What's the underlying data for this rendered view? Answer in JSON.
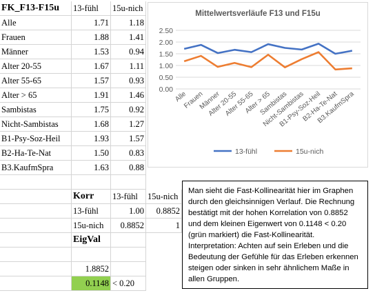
{
  "table1": {
    "header": [
      "FK_F13-F15u",
      "13-fühl",
      "15u-nich"
    ],
    "rows": [
      [
        "Alle",
        "1.71",
        "1.18"
      ],
      [
        "Frauen",
        "1.88",
        "1.41"
      ],
      [
        "Männer",
        "1.53",
        "0.94"
      ],
      [
        "Alter 20-55",
        "1.67",
        "1.11"
      ],
      [
        "Alter 55-65",
        "1.57",
        "0.93"
      ],
      [
        "Alter > 65",
        "1.91",
        "1.46"
      ],
      [
        "Sambistas",
        "1.75",
        "0.92"
      ],
      [
        "Nicht-Sambistas",
        "1.68",
        "1.27"
      ],
      [
        "B1-Psy-Soz-Heil",
        "1.93",
        "1.57"
      ],
      [
        "B2-Ha-Te-Nat",
        "1.50",
        "0.83"
      ],
      [
        "B3.KaufmSpra",
        "1.63",
        "0.88"
      ]
    ]
  },
  "korr": {
    "title": "Korr",
    "col1": "13-fühl",
    "col2": "15u-nich",
    "row1": [
      "13-fühl",
      "1.00",
      "0.8852"
    ],
    "row2": [
      "15u-nich",
      "0.8852",
      "1"
    ]
  },
  "eig": {
    "title": "EigVal",
    "v1": "1.8852",
    "v2": "0.1148",
    "cond": "< 0.20"
  },
  "note": "Man sieht die Fast-Kollinearität hier im Graphen durch den gleichsinnigen Verlauf. Die Rechnung bestätigt mit der hohen Korrelation von 0.8852 und dem kleinen Eigenwert von 0.1148 < 0.20 (grün markiert) die Fast-Kollinearität. Interpretation: Achten auf sein Erleben und die Bedeutung der Gefühle für das Erleben erkennen steigen oder sinken in sehr ähnlichem Maße in allen Gruppen.",
  "chart_data": {
    "type": "line",
    "title": "Mittelwertsverläufe F13 und F15u",
    "categories": [
      "Alle",
      "Frauen",
      "Männer",
      "Alter 20-55",
      "Alter 55-65",
      "Alter > 65",
      "Sambistas",
      "Nicht-Sambistas",
      "B1-Psy-Soz-Heil",
      "B2-Ha-Te-Nat",
      "B3.KaufmSpra"
    ],
    "series": [
      {
        "name": "13-fühl",
        "color": "#4472c4",
        "values": [
          1.71,
          1.88,
          1.53,
          1.67,
          1.57,
          1.91,
          1.75,
          1.68,
          1.93,
          1.5,
          1.63
        ]
      },
      {
        "name": "15u-nich",
        "color": "#ed7d31",
        "values": [
          1.18,
          1.41,
          0.94,
          1.11,
          0.93,
          1.46,
          0.92,
          1.27,
          1.57,
          0.83,
          0.88
        ]
      }
    ],
    "yticks": [
      "2.50",
      "2.00",
      "1.50",
      "1.00",
      "0.50",
      "0.00"
    ],
    "ylim": [
      0,
      2.5
    ],
    "legend": "bottom",
    "grid": true
  }
}
